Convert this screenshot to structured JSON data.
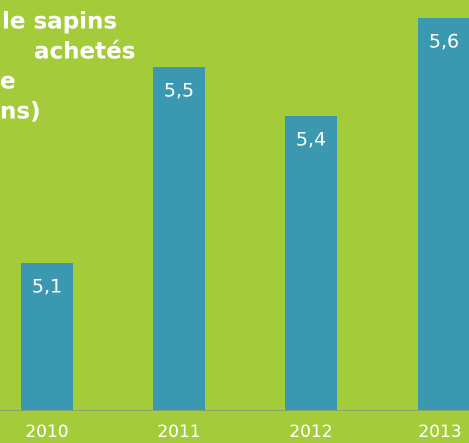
{
  "chart_data": {
    "type": "bar",
    "title_lines": [
      "le sapins",
      "achetés",
      "e",
      "ns)"
    ],
    "categories": [
      "2010",
      "2011",
      "2012",
      "2013"
    ],
    "values": [
      5.1,
      5.5,
      5.4,
      5.6
    ],
    "value_labels": [
      "5,1",
      "5,5",
      "5,4",
      "5,6"
    ],
    "color": "#3a98b0",
    "ylim": [
      4.8,
      5.6
    ]
  }
}
